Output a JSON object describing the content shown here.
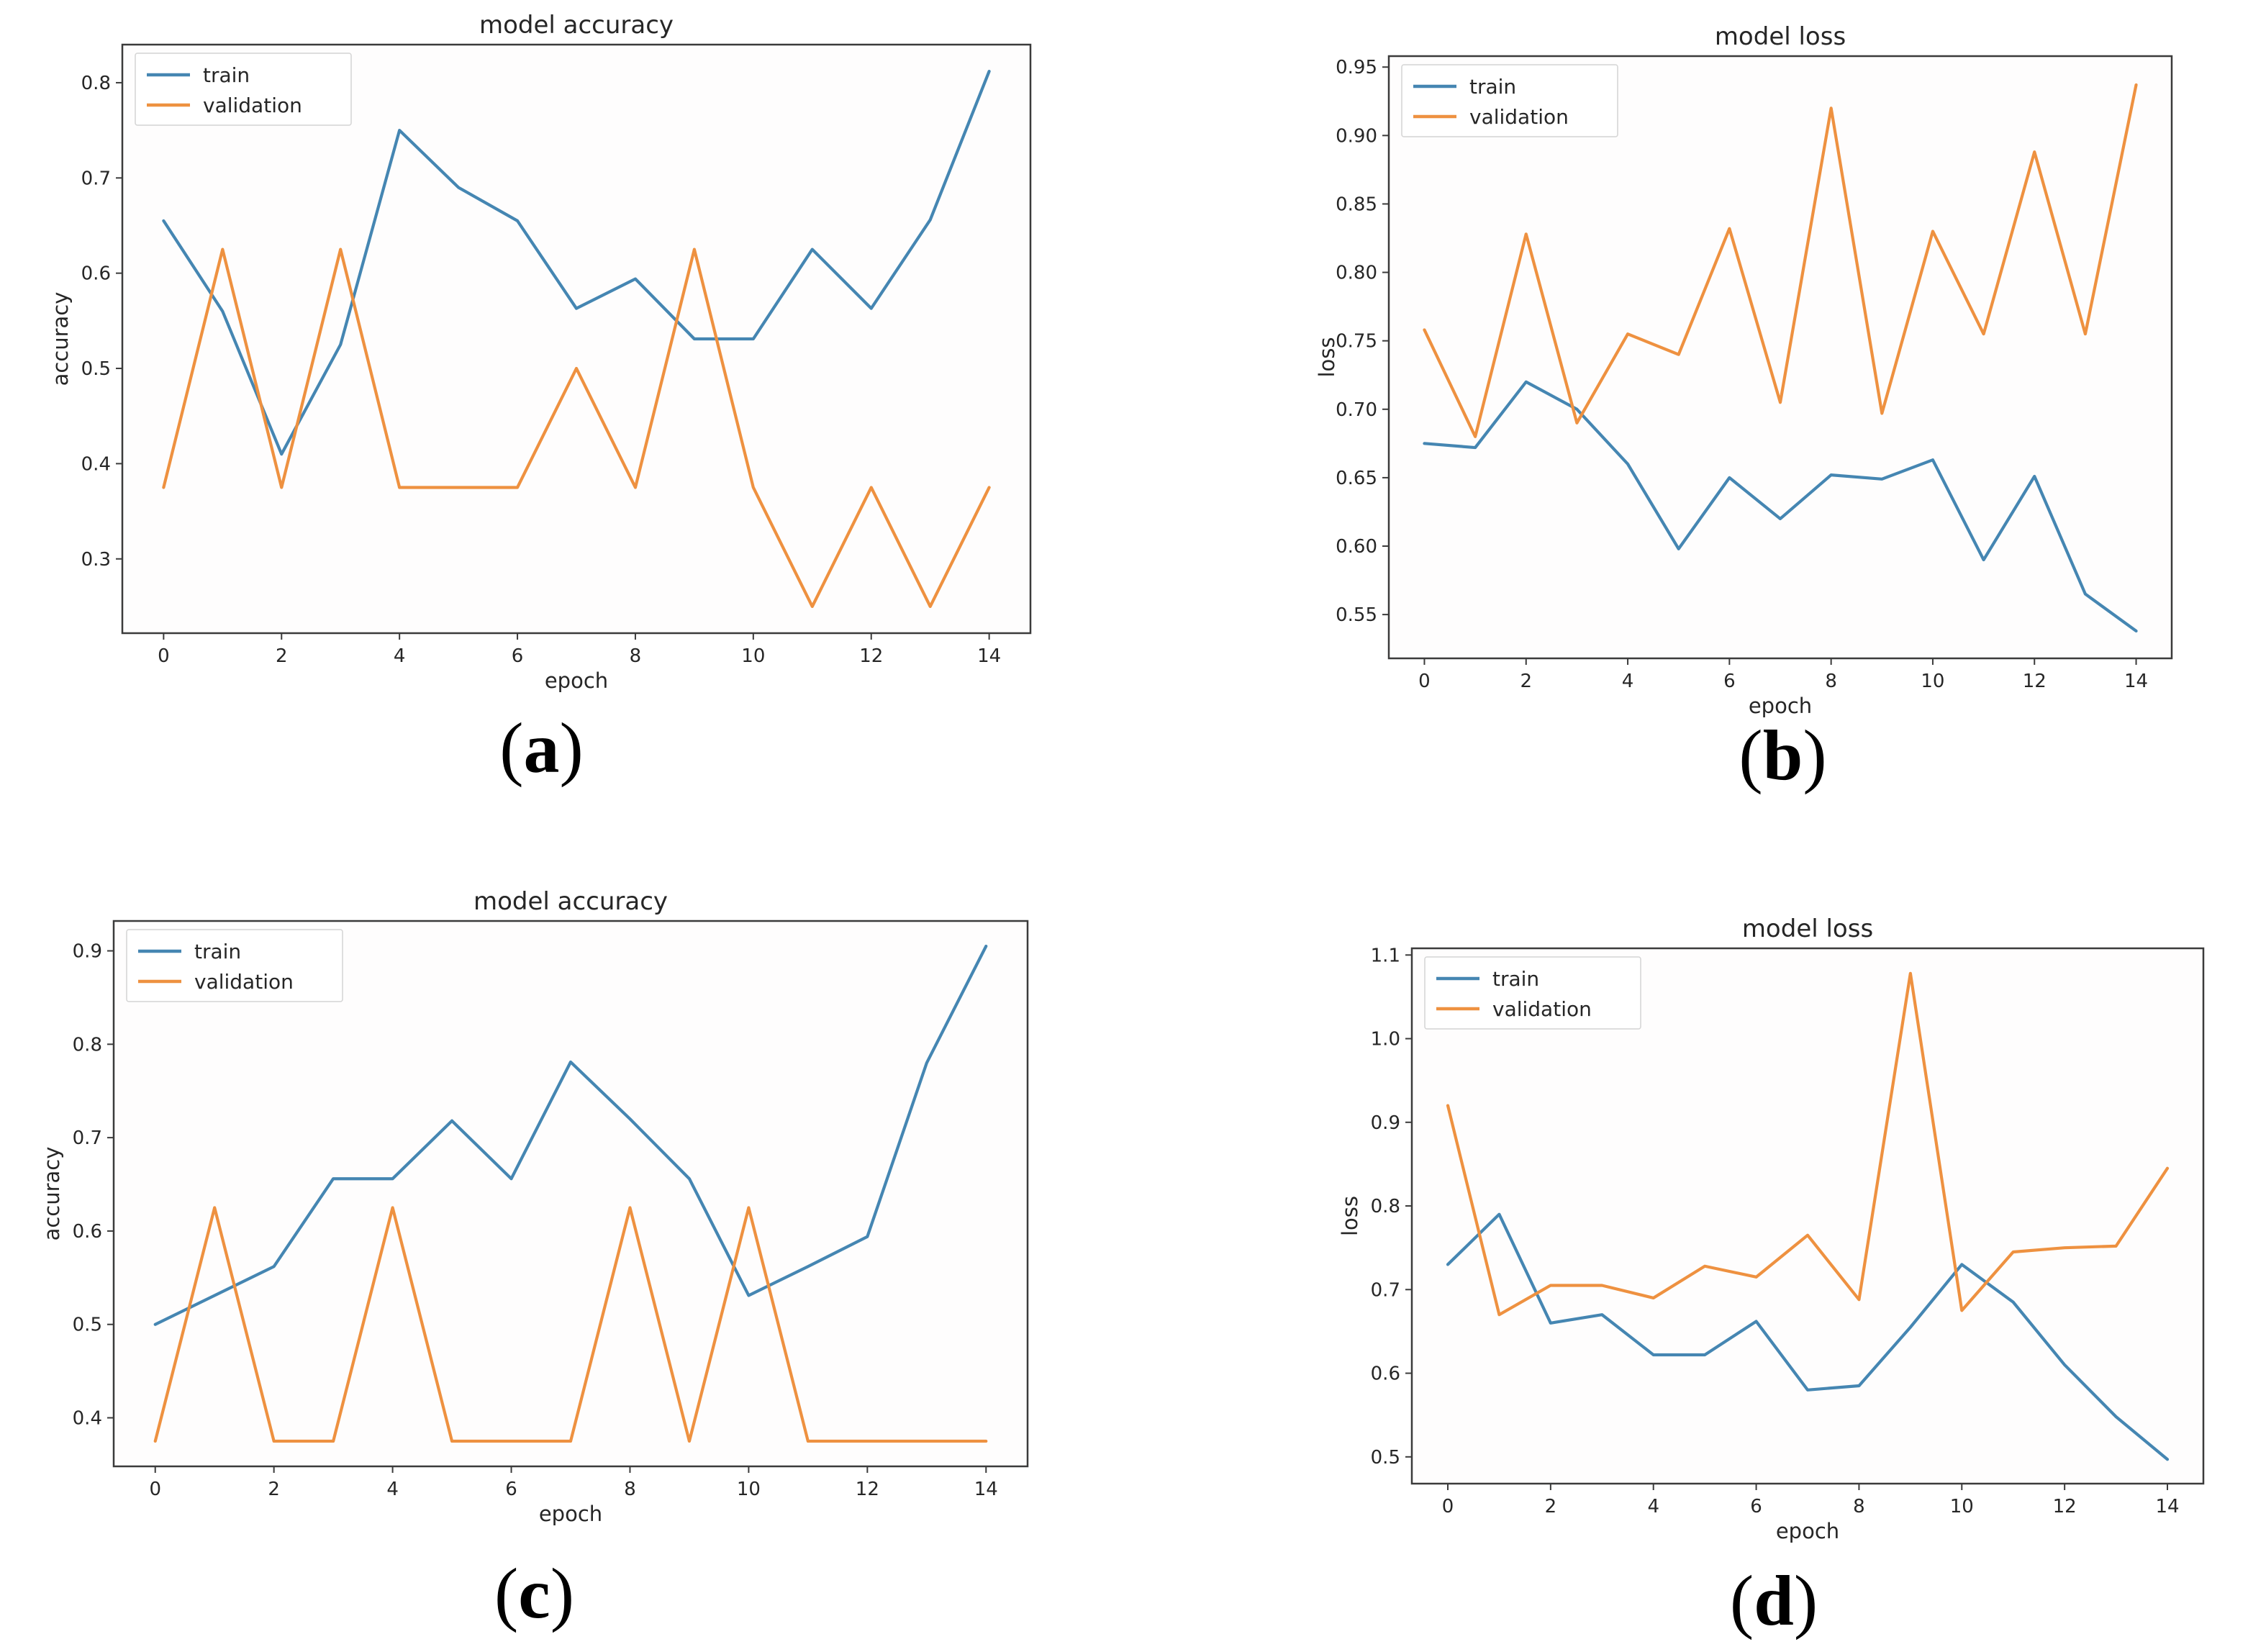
{
  "page": {
    "background": "#ffffff"
  },
  "colors": {
    "train": "#4586b2",
    "validation": "#ee9140",
    "spine": "#3b3b3b",
    "text": "#262626",
    "legend_border": "#d4d4d4"
  },
  "figures": [
    {
      "caption": {
        "open": "(",
        "letter": "a",
        "close": ")"
      }
    },
    {
      "caption": {
        "open": "(",
        "letter": "b",
        "close": ")"
      }
    },
    {
      "caption": {
        "open": "(",
        "letter": "c",
        "close": ")"
      }
    },
    {
      "caption": {
        "open": "(",
        "letter": "d",
        "close": ")"
      }
    }
  ],
  "chart_data": [
    {
      "id": "a",
      "type": "line",
      "title": "model accuracy",
      "xlabel": "epoch",
      "ylabel": "accuracy",
      "x": [
        0,
        1,
        2,
        3,
        4,
        5,
        6,
        7,
        8,
        9,
        10,
        11,
        12,
        13,
        14
      ],
      "series": [
        {
          "name": "train",
          "color": "#4586b2",
          "values": [
            0.655,
            0.56,
            0.41,
            0.525,
            0.75,
            0.69,
            0.655,
            0.563,
            0.594,
            0.531,
            0.531,
            0.625,
            0.563,
            0.656,
            0.812
          ]
        },
        {
          "name": "validation",
          "color": "#ee9140",
          "values": [
            0.375,
            0.625,
            0.375,
            0.625,
            0.375,
            0.375,
            0.375,
            0.5,
            0.375,
            0.625,
            0.375,
            0.25,
            0.375,
            0.25,
            0.375
          ]
        }
      ],
      "xlim": [
        -0.7,
        14.7
      ],
      "ylim": [
        0.222,
        0.84
      ],
      "xtick_values": [
        0,
        2,
        4,
        6,
        8,
        10,
        12,
        14
      ],
      "xtick_labels": [
        "0",
        "2",
        "4",
        "6",
        "8",
        "10",
        "12",
        "14"
      ],
      "ytick_values": [
        0.3,
        0.4,
        0.5,
        0.6,
        0.7,
        0.8
      ],
      "ytick_labels": [
        "0.3",
        "0.4",
        "0.5",
        "0.6",
        "0.7",
        "0.8"
      ],
      "legend_position": "upper-left",
      "grid": false
    },
    {
      "id": "b",
      "type": "line",
      "title": "model loss",
      "xlabel": "epoch",
      "ylabel": "loss",
      "x": [
        0,
        1,
        2,
        3,
        4,
        5,
        6,
        7,
        8,
        9,
        10,
        11,
        12,
        13,
        14
      ],
      "series": [
        {
          "name": "train",
          "color": "#4586b2",
          "values": [
            0.675,
            0.672,
            0.72,
            0.7,
            0.66,
            0.598,
            0.65,
            0.62,
            0.652,
            0.649,
            0.663,
            0.59,
            0.651,
            0.565,
            0.538
          ]
        },
        {
          "name": "validation",
          "color": "#ee9140",
          "values": [
            0.758,
            0.68,
            0.828,
            0.69,
            0.755,
            0.74,
            0.832,
            0.705,
            0.92,
            0.697,
            0.83,
            0.755,
            0.888,
            0.755,
            0.937
          ]
        }
      ],
      "xlim": [
        -0.7,
        14.7
      ],
      "ylim": [
        0.518,
        0.958
      ],
      "xtick_values": [
        0,
        2,
        4,
        6,
        8,
        10,
        12,
        14
      ],
      "xtick_labels": [
        "0",
        "2",
        "4",
        "6",
        "8",
        "10",
        "12",
        "14"
      ],
      "ytick_values": [
        0.55,
        0.6,
        0.65,
        0.7,
        0.75,
        0.8,
        0.85,
        0.9,
        0.95
      ],
      "ytick_labels": [
        "0.55",
        "0.60",
        "0.65",
        "0.70",
        "0.75",
        "0.80",
        "0.85",
        "0.90",
        "0.95"
      ],
      "legend_position": "upper-left",
      "grid": false
    },
    {
      "id": "c",
      "type": "line",
      "title": "model accuracy",
      "xlabel": "epoch",
      "ylabel": "accuracy",
      "x": [
        0,
        1,
        2,
        3,
        4,
        5,
        6,
        7,
        8,
        9,
        10,
        11,
        12,
        13,
        14
      ],
      "series": [
        {
          "name": "train",
          "color": "#4586b2",
          "values": [
            0.5,
            0.531,
            0.562,
            0.656,
            0.656,
            0.718,
            0.656,
            0.781,
            0.72,
            0.656,
            0.531,
            0.562,
            0.594,
            0.78,
            0.905
          ]
        },
        {
          "name": "validation",
          "color": "#ee9140",
          "values": [
            0.375,
            0.625,
            0.375,
            0.375,
            0.625,
            0.375,
            0.375,
            0.375,
            0.625,
            0.375,
            0.625,
            0.375,
            0.375,
            0.375,
            0.375
          ]
        }
      ],
      "xlim": [
        -0.7,
        14.7
      ],
      "ylim": [
        0.348,
        0.932
      ],
      "xtick_values": [
        0,
        2,
        4,
        6,
        8,
        10,
        12,
        14
      ],
      "xtick_labels": [
        "0",
        "2",
        "4",
        "6",
        "8",
        "10",
        "12",
        "14"
      ],
      "ytick_values": [
        0.4,
        0.5,
        0.6,
        0.7,
        0.8,
        0.9
      ],
      "ytick_labels": [
        "0.4",
        "0.5",
        "0.6",
        "0.7",
        "0.8",
        "0.9"
      ],
      "legend_position": "upper-left",
      "grid": false
    },
    {
      "id": "d",
      "type": "line",
      "title": "model loss",
      "xlabel": "epoch",
      "ylabel": "loss",
      "x": [
        0,
        1,
        2,
        3,
        4,
        5,
        6,
        7,
        8,
        9,
        10,
        11,
        12,
        13,
        14
      ],
      "series": [
        {
          "name": "train",
          "color": "#4586b2",
          "values": [
            0.73,
            0.79,
            0.66,
            0.67,
            0.622,
            0.622,
            0.662,
            0.58,
            0.585,
            0.655,
            0.73,
            0.685,
            0.61,
            0.548,
            0.497
          ]
        },
        {
          "name": "validation",
          "color": "#ee9140",
          "values": [
            0.92,
            0.67,
            0.705,
            0.705,
            0.69,
            0.728,
            0.715,
            0.765,
            0.688,
            1.078,
            0.675,
            0.745,
            0.75,
            0.752,
            0.845
          ]
        }
      ],
      "xlim": [
        -0.7,
        14.7
      ],
      "ylim": [
        0.468,
        1.108
      ],
      "xtick_values": [
        0,
        2,
        4,
        6,
        8,
        10,
        12,
        14
      ],
      "xtick_labels": [
        "0",
        "2",
        "4",
        "6",
        "8",
        "10",
        "12",
        "14"
      ],
      "ytick_values": [
        0.5,
        0.6,
        0.7,
        0.8,
        0.9,
        1.0,
        1.1
      ],
      "ytick_labels": [
        "0.5",
        "0.6",
        "0.7",
        "0.8",
        "0.9",
        "1.0",
        "1.1"
      ],
      "legend_position": "upper-left",
      "grid": false
    }
  ]
}
